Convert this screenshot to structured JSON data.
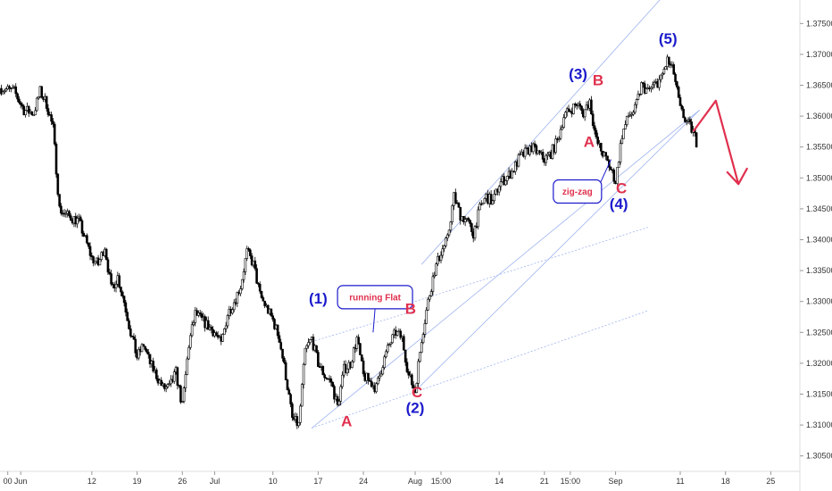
{
  "chart_data": {
    "type": "candlestick",
    "title": "",
    "colors": {
      "candle": "#000000",
      "wave_blue": "#1a1acc",
      "wave_red": "#e0304e",
      "channel": "#9fb4f0",
      "callout_border": "#1a1acc",
      "projection_arrow": "#e0304e"
    },
    "y_axis": {
      "position": "right",
      "ylim": [
        1.3025,
        1.3788
      ],
      "ticks": [
        "1.37500",
        "1.37000",
        "1.36500",
        "1.36000",
        "1.35500",
        "1.35000",
        "1.34500",
        "1.34000",
        "1.33500",
        "1.33000",
        "1.32500",
        "1.32000",
        "1.31500",
        "1.31000",
        "1.30500"
      ]
    },
    "x_axis": {
      "ticks": [
        {
          "label": "00",
          "day": -1
        },
        {
          "label": "Jun",
          "day": 1
        },
        {
          "label": "12",
          "day": 12
        },
        {
          "label": "19",
          "day": 19
        },
        {
          "label": "26",
          "day": 26
        },
        {
          "label": "Jul",
          "day": 31
        },
        {
          "label": "10",
          "day": 40
        },
        {
          "label": "17",
          "day": 47
        },
        {
          "label": "24",
          "day": 54
        },
        {
          "label": "Aug",
          "day": 62
        },
        {
          "label": "15:00",
          "day": 66
        },
        {
          "label": "14",
          "day": 75
        },
        {
          "label": "21",
          "day": 82
        },
        {
          "label": "15:00",
          "day": 86
        },
        {
          "label": "Sep",
          "day": 93
        },
        {
          "label": "11",
          "day": 103
        },
        {
          "label": "18",
          "day": 110
        },
        {
          "label": "25",
          "day": 117
        }
      ],
      "xlim": [
        -2.2,
        121.5
      ]
    },
    "close_path": [
      [
        -2,
        1.3645
      ],
      [
        0,
        1.364
      ],
      [
        1.5,
        1.361
      ],
      [
        3,
        1.3605
      ],
      [
        4,
        1.364
      ],
      [
        5,
        1.362
      ],
      [
        6,
        1.358
      ],
      [
        7,
        1.345
      ],
      [
        8,
        1.344
      ],
      [
        10,
        1.343
      ],
      [
        11,
        1.34
      ],
      [
        12,
        1.337
      ],
      [
        13,
        1.336
      ],
      [
        14,
        1.339
      ],
      [
        15,
        1.332
      ],
      [
        16,
        1.334
      ],
      [
        17,
        1.33
      ],
      [
        18,
        1.325
      ],
      [
        19,
        1.321
      ],
      [
        20,
        1.323
      ],
      [
        21,
        1.32
      ],
      [
        22,
        1.318
      ],
      [
        23,
        1.316
      ],
      [
        24,
        1.316
      ],
      [
        25,
        1.3185
      ],
      [
        26,
        1.313
      ],
      [
        27,
        1.323
      ],
      [
        28,
        1.328
      ],
      [
        29,
        1.327
      ],
      [
        30,
        1.326
      ],
      [
        31,
        1.325
      ],
      [
        32,
        1.323
      ],
      [
        33,
        1.328
      ],
      [
        34,
        1.33
      ],
      [
        35,
        1.3325
      ],
      [
        36,
        1.338
      ],
      [
        37,
        1.336
      ],
      [
        38,
        1.331
      ],
      [
        39,
        1.329
      ],
      [
        40,
        1.327
      ],
      [
        41,
        1.324
      ],
      [
        42,
        1.318
      ],
      [
        43,
        1.311
      ],
      [
        44,
        1.31
      ],
      [
        45,
        1.322
      ],
      [
        46,
        1.324
      ],
      [
        47,
        1.32
      ],
      [
        48,
        1.318
      ],
      [
        49,
        1.317
      ],
      [
        50,
        1.313
      ],
      [
        51,
        1.319
      ],
      [
        52,
        1.32
      ],
      [
        53,
        1.324
      ],
      [
        54,
        1.318
      ],
      [
        55,
        1.317
      ],
      [
        56,
        1.316
      ],
      [
        57,
        1.32
      ],
      [
        58,
        1.323
      ],
      [
        59,
        1.325
      ],
      [
        60,
        1.324
      ],
      [
        61,
        1.318
      ],
      [
        62,
        1.3155
      ],
      [
        63,
        1.324
      ],
      [
        64,
        1.33
      ],
      [
        65,
        1.335
      ],
      [
        66,
        1.338
      ],
      [
        67,
        1.34
      ],
      [
        68,
        1.347
      ],
      [
        69,
        1.344
      ],
      [
        70,
        1.343
      ],
      [
        71,
        1.341
      ],
      [
        72,
        1.345
      ],
      [
        73,
        1.347
      ],
      [
        74,
        1.346
      ],
      [
        75,
        1.349
      ],
      [
        76,
        1.35
      ],
      [
        77,
        1.351
      ],
      [
        78,
        1.353
      ],
      [
        79,
        1.354
      ],
      [
        80,
        1.355
      ],
      [
        81,
        1.354
      ],
      [
        82,
        1.353
      ],
      [
        83,
        1.354
      ],
      [
        84,
        1.356
      ],
      [
        85,
        1.36
      ],
      [
        86,
        1.361
      ],
      [
        87,
        1.362
      ],
      [
        88,
        1.3605
      ],
      [
        89,
        1.3625
      ],
      [
        90,
        1.356
      ],
      [
        91,
        1.354
      ],
      [
        92,
        1.352
      ],
      [
        93,
        1.3495
      ],
      [
        94,
        1.357
      ],
      [
        95,
        1.36
      ],
      [
        96,
        1.361
      ],
      [
        97,
        1.365
      ],
      [
        98,
        1.364
      ],
      [
        99,
        1.365
      ],
      [
        100,
        1.366
      ],
      [
        101,
        1.369
      ],
      [
        102,
        1.367
      ],
      [
        103,
        1.361
      ],
      [
        104,
        1.359
      ],
      [
        105,
        1.3575
      ],
      [
        105.6,
        1.3555
      ]
    ],
    "wave_labels": [
      {
        "text": "(1)",
        "day": 47,
        "price": 1.3297,
        "color": "blue"
      },
      {
        "text": "(2)",
        "day": 62,
        "price": 1.312,
        "color": "blue"
      },
      {
        "text": "(3)",
        "day": 87.2,
        "price": 1.366,
        "color": "blue"
      },
      {
        "text": "(4)",
        "day": 93.5,
        "price": 1.345,
        "color": "blue"
      },
      {
        "text": "(5)",
        "day": 101.1,
        "price": 1.3717,
        "color": "blue"
      },
      {
        "text": "A",
        "day": 51.4,
        "price": 1.3098,
        "color": "red"
      },
      {
        "text": "B",
        "day": 61.3,
        "price": 1.328,
        "color": "red"
      },
      {
        "text": "C",
        "day": 62.3,
        "price": 1.3145,
        "color": "red"
      },
      {
        "text": "A",
        "day": 88.9,
        "price": 1.355,
        "color": "red"
      },
      {
        "text": "B",
        "day": 90.3,
        "price": 1.365,
        "color": "red"
      },
      {
        "text": "C",
        "day": 93.9,
        "price": 1.3475,
        "color": "red"
      }
    ],
    "annotations": [
      {
        "text": "running Flat",
        "day": 55.8,
        "price": 1.3307,
        "pointer_day": 55.5,
        "pointer_price": 1.325
      },
      {
        "text": "zig-zag",
        "day": 87.1,
        "price": 1.3478,
        "pointer_day": 92.3,
        "pointer_price": 1.353
      }
    ],
    "channel_lines": [
      {
        "from": [
          63,
          1.336
        ],
        "to": [
          100,
          1.379
        ]
      },
      {
        "from": [
          46,
          1.3095
        ],
        "to": [
          106,
          1.361
        ]
      },
      {
        "from": [
          62,
          1.3155
        ],
        "to": [
          106,
          1.361
        ]
      },
      {
        "from": [
          62,
          1.33
        ],
        "to": [
          98,
          1.342
        ]
      },
      {
        "from": [
          46,
          1.3095
        ],
        "to": [
          98,
          1.3285
        ]
      },
      {
        "from": [
          46,
          1.3235
        ],
        "to": [
          62,
          1.3285
        ]
      }
    ],
    "projection": [
      [
        105,
        1.3575
      ],
      [
        108.5,
        1.3625
      ],
      [
        112,
        1.349
      ]
    ]
  }
}
